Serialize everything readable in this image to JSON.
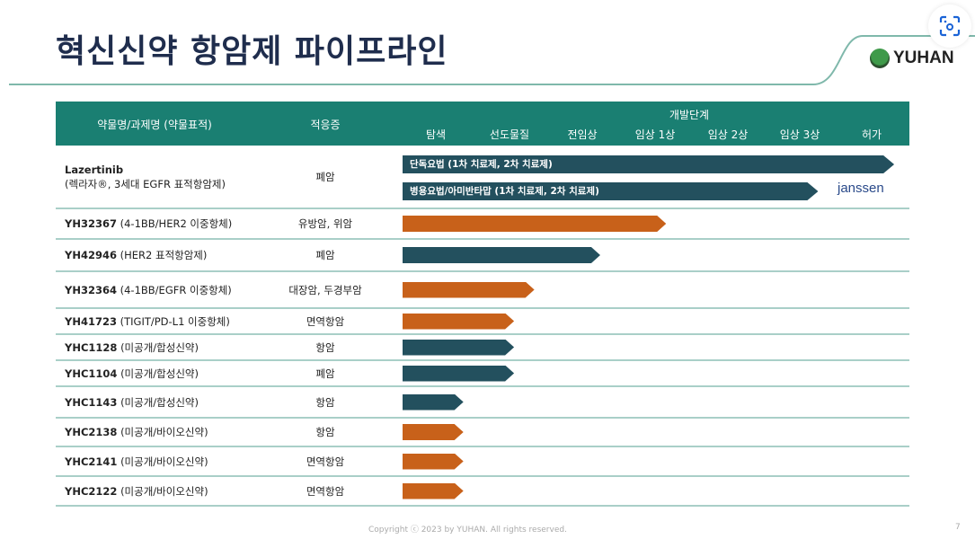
{
  "title": "혁신신약 항암제 파이프라인",
  "logo": {
    "text": "YUHAN"
  },
  "colors": {
    "header": "#1a7f72",
    "teal_bar": "#23505e",
    "orange_bar": "#c8611a",
    "title": "#1f2d4d"
  },
  "table": {
    "col_name": "약물명/과제명 (약물표적)",
    "col_indication": "적응증",
    "col_stage": "개발단계",
    "stages": [
      "탐색",
      "선도물질",
      "전임상",
      "임상 1상",
      "임상 2상",
      "임상 3상",
      "허가"
    ],
    "lazertinib": {
      "name": "Lazertinib",
      "desc": "(렉라자®, 3세대 EGFR 표적항암제)",
      "indication": "폐암",
      "bars": [
        {
          "label": "단독요법 (1차 치료제, 2차 치료제)",
          "progress_pct": 97
        },
        {
          "label": "병용요법/아미반타맙 (1차 치료제, 2차 치료제)",
          "progress_pct": 82
        }
      ],
      "partner": "janssen"
    },
    "rows": [
      {
        "code": "YH32367",
        "desc": "(4-1BB/HER2 이중항체)",
        "indication": "유방암, 위암",
        "color": "orange",
        "progress_pct": 52
      },
      {
        "code": "YH42946",
        "desc": "(HER2 표적항암제)",
        "indication": "폐암",
        "color": "teal",
        "progress_pct": 39
      },
      {
        "code": "YH32364",
        "desc": "(4-1BB/EGFR 이중항체)",
        "indication": "대장암, 두경부암",
        "color": "orange",
        "progress_pct": 26
      },
      {
        "code": "YH41723",
        "desc": "(TIGIT/PD-L1 이중항체)",
        "indication": "면역항암",
        "color": "orange",
        "progress_pct": 22
      },
      {
        "code": "YHC1128",
        "desc": "(미공개/합성신약)",
        "indication": "항암",
        "color": "teal",
        "progress_pct": 22
      },
      {
        "code": "YHC1104",
        "desc": "(미공개/합성신약)",
        "indication": "폐암",
        "color": "teal",
        "progress_pct": 22
      },
      {
        "code": "YHC1143",
        "desc": "(미공개/합성신약)",
        "indication": "항암",
        "color": "teal",
        "progress_pct": 12
      },
      {
        "code": "YHC2138",
        "desc": "(미공개/바이오신약)",
        "indication": "항암",
        "color": "orange",
        "progress_pct": 12
      },
      {
        "code": "YHC2141",
        "desc": "(미공개/바이오신약)",
        "indication": "면역항암",
        "color": "orange",
        "progress_pct": 12
      },
      {
        "code": "YHC2122",
        "desc": "(미공개/바이오신약)",
        "indication": "면역항암",
        "color": "orange",
        "progress_pct": 12
      }
    ]
  },
  "footer": "Copyright ⓒ 2023 by YUHAN. All rights reserved.",
  "page_number": "7"
}
